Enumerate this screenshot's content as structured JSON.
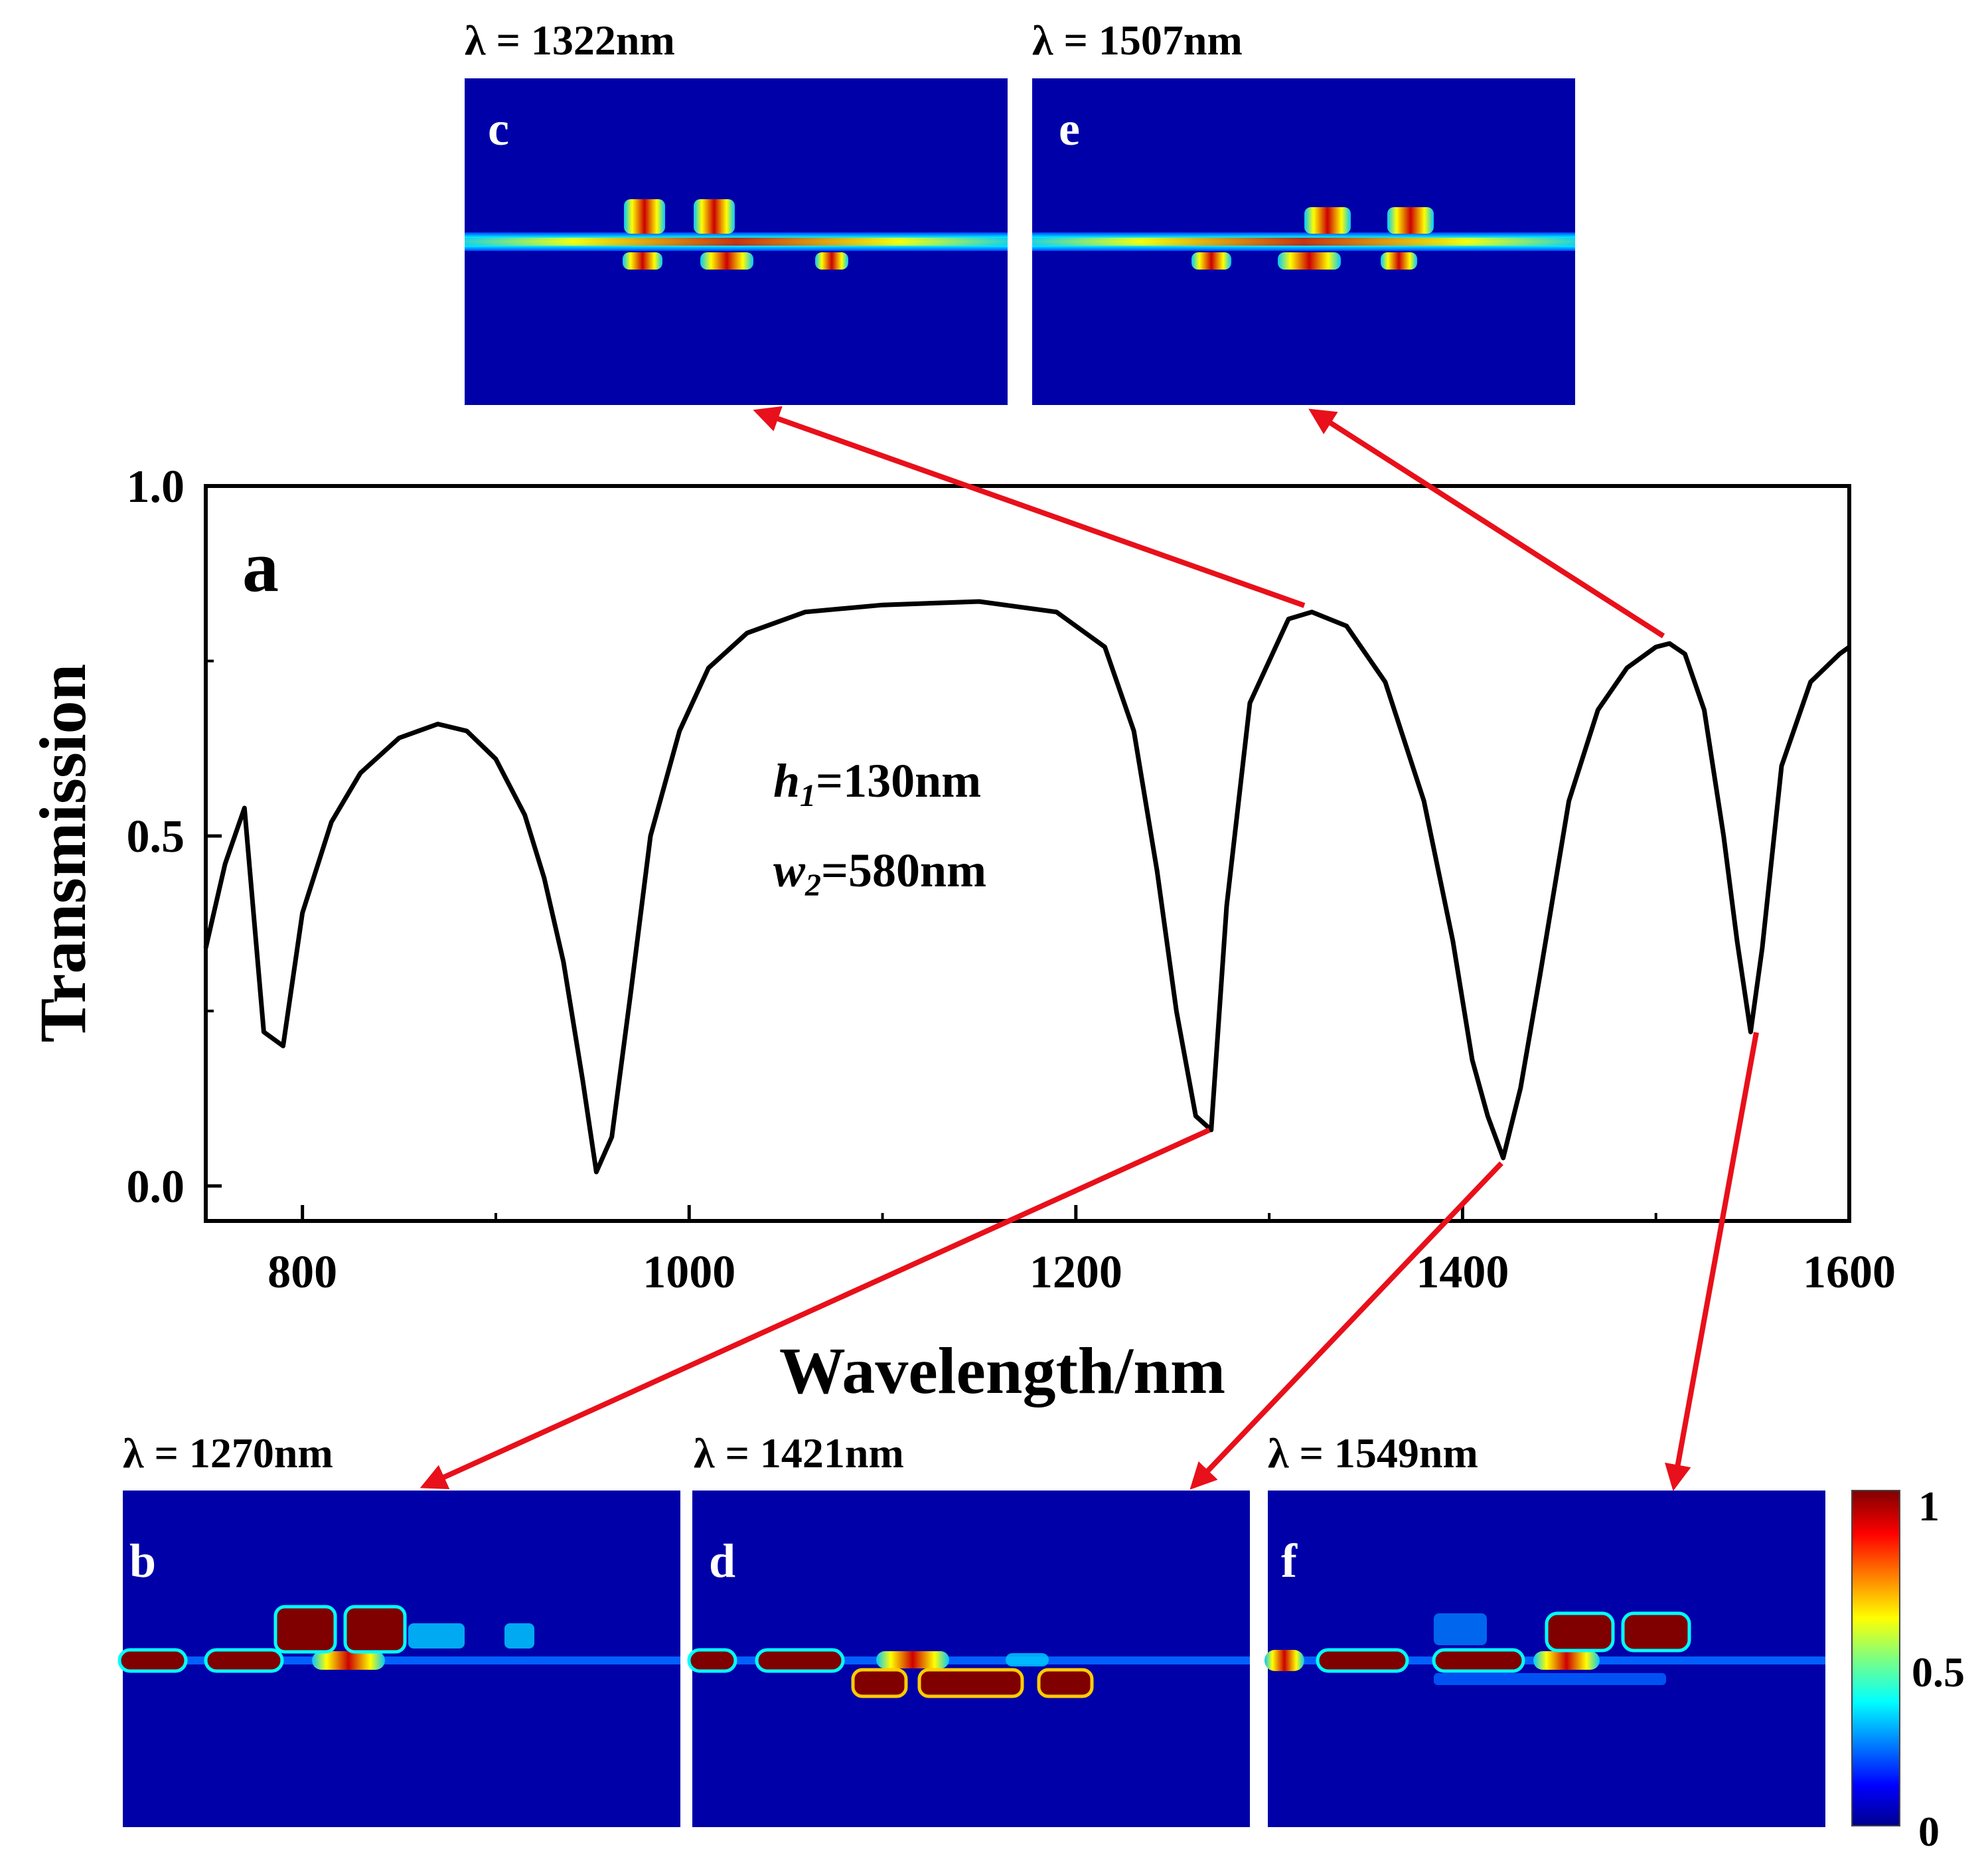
{
  "chart_data": {
    "type": "line",
    "panel_label": "a",
    "xlabel": "Wavelength/nm",
    "ylabel": "Transmission",
    "xlim": [
      750,
      1600
    ],
    "ylim": [
      -0.05,
      1.0
    ],
    "xticks": [
      "800",
      "1000",
      "1200",
      "1400",
      "1600"
    ],
    "xtick_values": [
      800,
      1000,
      1200,
      1400,
      1600
    ],
    "yticks": [
      "0.0",
      "0.5",
      "1.0"
    ],
    "ytick_values": [
      0.0,
      0.5,
      1.0
    ],
    "grid": false,
    "annotations": [
      {
        "base": "h",
        "sub": "1",
        "rest": "=130nm"
      },
      {
        "base": "w",
        "sub": "2",
        "rest": "=580nm"
      }
    ],
    "series": [
      {
        "color": "#000000",
        "x": [
          750,
          760,
          770,
          780,
          790,
          800,
          815,
          830,
          850,
          870,
          885,
          900,
          915,
          925,
          935,
          945,
          952,
          960,
          970,
          980,
          995,
          1010,
          1030,
          1060,
          1100,
          1150,
          1190,
          1215,
          1230,
          1242,
          1252,
          1262,
          1270,
          1278,
          1290,
          1310,
          1322,
          1340,
          1360,
          1380,
          1395,
          1405,
          1413,
          1421,
          1430,
          1440,
          1455,
          1470,
          1485,
          1500,
          1507,
          1515,
          1525,
          1535,
          1542,
          1549,
          1555,
          1565,
          1580,
          1595,
          1600
        ],
        "y": [
          0.34,
          0.46,
          0.54,
          0.22,
          0.2,
          0.39,
          0.52,
          0.59,
          0.64,
          0.66,
          0.65,
          0.61,
          0.53,
          0.44,
          0.32,
          0.15,
          0.02,
          0.07,
          0.28,
          0.5,
          0.65,
          0.74,
          0.79,
          0.82,
          0.83,
          0.835,
          0.82,
          0.77,
          0.65,
          0.45,
          0.25,
          0.1,
          0.08,
          0.4,
          0.69,
          0.81,
          0.82,
          0.8,
          0.72,
          0.55,
          0.35,
          0.18,
          0.1,
          0.04,
          0.14,
          0.3,
          0.55,
          0.68,
          0.74,
          0.77,
          0.775,
          0.76,
          0.68,
          0.5,
          0.35,
          0.22,
          0.34,
          0.6,
          0.72,
          0.76,
          0.77
        ]
      }
    ]
  },
  "field_maps": {
    "colorbar": {
      "max_label": "1",
      "mid_label": "0.5",
      "min_label": "0",
      "background_color": "#0000a8",
      "hot_color": "#800000"
    },
    "panels": [
      {
        "letter": "c",
        "lambda": "λ = 1322nm",
        "wavelength": 1322
      },
      {
        "letter": "e",
        "lambda": "λ = 1507nm",
        "wavelength": 1507
      },
      {
        "letter": "b",
        "lambda": "λ = 1270nm",
        "wavelength": 1270
      },
      {
        "letter": "d",
        "lambda": "λ = 1421nm",
        "wavelength": 1421
      },
      {
        "letter": "f",
        "lambda": "λ = 1549nm",
        "wavelength": 1549
      }
    ]
  },
  "colors": {
    "arrow": "#e8101a",
    "curve": "#000000"
  }
}
